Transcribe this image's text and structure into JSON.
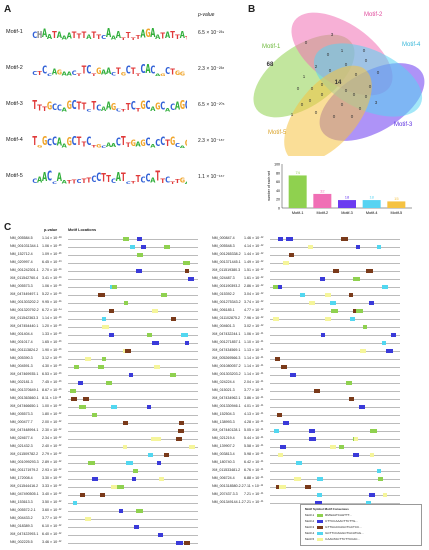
{
  "panels": {
    "a": "A",
    "b": "B",
    "c": "C"
  },
  "motifs": {
    "header_pvalue": "p-value",
    "items": [
      {
        "name": "Motif-1",
        "pvalue": "6.5 × 10⁻²³⁹",
        "seq": "CHAATAAATTTATTCAAATTTTAGAATATTATT"
      },
      {
        "name": "Motif-2",
        "pvalue": "2.3 × 10⁻²³⁸",
        "seq": "CTCCAGAACTTCTGAACTGCTTCACAGCTGG"
      },
      {
        "name": "Motif-3",
        "pvalue": "6.5 × 10⁻²⁰⁶",
        "seq": "TTTGCCAGCTTCTCAAGCTTCTGCAGCACAGC"
      },
      {
        "name": "Motif-4",
        "pvalue": "2.3 × 10⁻¹⁸⁷",
        "seq": "TGGCCAAGCTTCTGCAACTTGAGCACCTGCAGCTG"
      },
      {
        "name": "Motif-5",
        "pvalue": "1.1 × 10⁻¹⁶⁷",
        "seq": "CAACCAATTCTTCCTTCATCTTCCATTCTTGAGCTCA"
      }
    ]
  },
  "venn": {
    "labels": [
      "Motif-1",
      "Motif-2",
      "Motif-3",
      "Motif-4",
      "Motif-5"
    ],
    "colors": [
      "#8fd14f",
      "#f06fb5",
      "#6b3bf0",
      "#57d3f2",
      "#f5c242"
    ],
    "numbers": [
      "68",
      "3",
      "0",
      "14",
      "0",
      "1",
      "2",
      "0",
      "0",
      "0",
      "0",
      "0",
      "0",
      "0",
      "0",
      "0",
      "0",
      "0",
      "3",
      "1",
      "0",
      "0",
      "0",
      "0",
      "0",
      "0",
      "0",
      "0",
      "0",
      "1",
      "0"
    ]
  },
  "chart_data": {
    "type": "bar",
    "categories": [
      "Motif-1",
      "Motif-2",
      "Motif-3",
      "Motif-4",
      "Motif-5"
    ],
    "values": [
      74,
      32,
      18,
      18,
      15
    ],
    "colors": [
      "#8fd14f",
      "#f06fb5",
      "#6b3bf0",
      "#57d3f2",
      "#f5c242"
    ],
    "ylabel": "number of each set",
    "ylim": [
      0,
      100
    ],
    "yticks": [
      "100",
      "80",
      "60",
      "40",
      "20",
      "0"
    ]
  },
  "table": {
    "col_pvalue": "p-value",
    "col_locations": "Motif Locations",
    "left": [
      {
        "id": "NM_005584.5",
        "p": "1.14 × 10⁻²⁸"
      },
      {
        "id": "NM_001031344.1",
        "p": "1.06 × 10⁻²³"
      },
      {
        "id": "NM_152712.4",
        "p": "1.09 × 10⁻²³"
      },
      {
        "id": "NM_020997.4",
        "p": "6.45 × 10⁻¹⁹"
      },
      {
        "id": "NM_001242301.1",
        "p": "2.70 × 10⁻¹⁶"
      },
      {
        "id": "XM_011542760.4",
        "p": "3.41 × 10⁻¹⁶"
      },
      {
        "id": "NM_005573.3",
        "p": "1.06 × 10⁻¹⁵"
      },
      {
        "id": "XM_047449497.1",
        "p": "5.22 × 10⁻¹⁵"
      },
      {
        "id": "NM_001303202.2",
        "p": "9.95 × 10⁻¹⁵"
      },
      {
        "id": "NM_001320792.2",
        "p": "6.72 × 10⁻¹⁴"
      },
      {
        "id": "XM_011542363.3",
        "p": "1.14 × 10⁻¹³"
      },
      {
        "id": "XM_047454440.1",
        "p": "1.20 × 10⁻¹³"
      },
      {
        "id": "NM_001404.4",
        "p": "1.33 × 10⁻¹³"
      },
      {
        "id": "NM_001017.4",
        "p": "1.65 × 10⁻¹³"
      },
      {
        "id": "NM_001113824.2",
        "p": "1.90 × 10⁻¹³"
      },
      {
        "id": "NM_005390.3",
        "p": "3.12 × 10⁻¹³"
      },
      {
        "id": "NM_004591.3",
        "p": "4.30 × 10⁻¹³"
      },
      {
        "id": "XM_047469935.1",
        "p": "6.53 × 10⁻¹³"
      },
      {
        "id": "NM_002181.3",
        "p": "7.45 × 10⁻¹³"
      },
      {
        "id": "NM_001370649.1",
        "p": "8.67 × 10⁻¹³"
      },
      {
        "id": "NM_001363660.1",
        "p": "8.11 × 10⁻¹³"
      },
      {
        "id": "XM_047466650.1",
        "p": "1.00 × 10⁻¹²"
      },
      {
        "id": "NM_005573.3",
        "p": "1.80 × 10⁻¹²"
      },
      {
        "id": "NM_000477.7",
        "p": "2.00 × 10⁻¹²"
      },
      {
        "id": "XM_047448994.1",
        "p": "2.30 × 10⁻¹²"
      },
      {
        "id": "NM_024677.4",
        "p": "2.34 × 10⁻¹²"
      },
      {
        "id": "NM_021432.3",
        "p": "2.40 × 10⁻¹²"
      },
      {
        "id": "XM_011509782.2",
        "p": "2.79 × 10⁻¹²"
      },
      {
        "id": "NM_001099293.3",
        "p": "2.89 × 10⁻¹²"
      },
      {
        "id": "NM_001171979.2",
        "p": "2.93 × 10⁻¹²"
      },
      {
        "id": "NM_172008.4",
        "p": "3.30 × 10⁻¹²"
      },
      {
        "id": "XM_011544416.2",
        "p": "3.33 × 10⁻¹²"
      },
      {
        "id": "NM_047490505.1",
        "p": "3.40 × 10⁻¹²"
      },
      {
        "id": "NM_153613.3",
        "p": "3.50 × 10⁻¹²"
      },
      {
        "id": "NM_005572.2.1",
        "p": "3.60 × 10⁻¹²"
      },
      {
        "id": "NM_004433.2",
        "p": "3.77 × 10⁻¹²"
      },
      {
        "id": "NM_018389.3",
        "p": "6.10 × 10⁻¹²"
      },
      {
        "id": "XM_047422993.1",
        "p": "6.40 × 10⁻¹²"
      },
      {
        "id": "NM_002225.5",
        "p": "3.46 × 10⁻¹²"
      }
    ],
    "right": [
      {
        "id": "NM_000847.4",
        "p": "1.46 × 10⁻¹²"
      },
      {
        "id": "NM_005548.3",
        "p": "4.14 × 10⁻¹²"
      },
      {
        "id": "NM_001265338.2",
        "p": "1.44 × 10⁻¹²"
      },
      {
        "id": "NM_001371445.1",
        "p": "1.49 × 10⁻¹²"
      },
      {
        "id": "XM_011519380.3",
        "p": "1.51 × 10⁻¹²"
      },
      {
        "id": "NM_024487.3",
        "p": "1.61 × 10⁻¹²"
      },
      {
        "id": "NM_001190393.2",
        "p": "2.86 × 10⁻¹²"
      },
      {
        "id": "NM_015392.2",
        "p": "3.04 × 10⁻¹²"
      },
      {
        "id": "NM_001275343.2",
        "p": "3.74 × 10⁻¹²"
      },
      {
        "id": "NM_006185.1",
        "p": "4.77 × 10⁻¹²"
      },
      {
        "id": "NM_011102875.2",
        "p": "7.96 × 10⁻¹²"
      },
      {
        "id": "NM_004601.3",
        "p": "3.02 × 10⁻¹²"
      },
      {
        "id": "XM_047432244.1",
        "p": "1.06 × 10⁻¹¹"
      },
      {
        "id": "NM_001271857.1",
        "p": "1.10 × 10⁻¹¹"
      },
      {
        "id": "XM_047434569.1",
        "p": "1.13 × 10⁻¹¹"
      },
      {
        "id": "XM_005269566.3",
        "p": "1.14 × 10⁻¹¹"
      },
      {
        "id": "NM_001080057.2",
        "p": "1.14 × 10⁻¹¹"
      },
      {
        "id": "NM_001303203.2",
        "p": "1.14 × 10⁻¹¹"
      },
      {
        "id": "NM_024224.4",
        "p": "2.04 × 10⁻¹¹"
      },
      {
        "id": "NM_015021.3",
        "p": "3.77 × 10⁻¹¹"
      },
      {
        "id": "XM_047434962.1",
        "p": "3.86 × 10⁻¹¹"
      },
      {
        "id": "NM_001330946.1",
        "p": "4.01 × 10⁻¹¹"
      },
      {
        "id": "NM_152504.3",
        "p": "4.13 × 10⁻¹¹"
      },
      {
        "id": "NM_138993.3",
        "p": "4.28 × 10⁻¹¹"
      },
      {
        "id": "XM_047440128.1",
        "p": "5.05 × 10⁻¹¹"
      },
      {
        "id": "NM_021219.4",
        "p": "5.44 × 10⁻¹¹"
      },
      {
        "id": "NM_139907.2",
        "p": "5.58 × 10⁻¹¹"
      },
      {
        "id": "NM_003813.4",
        "p": "5.98 × 10⁻¹¹"
      },
      {
        "id": "NM_180740.3",
        "p": "6.42 × 10⁻¹¹"
      },
      {
        "id": "XM_011533481.2",
        "p": "6.76 × 10⁻¹¹"
      },
      {
        "id": "NM_006724.4",
        "p": "6.88 × 10⁻¹¹"
      },
      {
        "id": "NM_001318580.2.2",
        "p": "7.11 × 10⁻¹¹"
      },
      {
        "id": "NM_207437.3.3",
        "p": "7.21 × 10⁻¹¹"
      },
      {
        "id": "NM_001349144.1.2",
        "p": "7.21 × 10⁻¹¹"
      }
    ]
  },
  "legend": {
    "title": "Motif  Symbol  Motif Consensus",
    "items": [
      {
        "name": "Motif-1",
        "color": "#8fd14f",
        "consensus": "RMGAATCAHTTT..."
      },
      {
        "name": "Motif-2",
        "color": "#3a3ad9",
        "consensus": "CTTCCAAACTTCTTG..."
      },
      {
        "name": "Motif-3",
        "color": "#7a3a1a",
        "consensus": "GTTGGCCAGCTGCTCC..."
      },
      {
        "name": "Motif-4",
        "color": "#52d7f0",
        "consensus": "GCTTCCAGGCTGCATGG..."
      },
      {
        "name": "Motif-5",
        "color": "#f5f59a",
        "consensus": "CAAGTACTTCTTCCAC..."
      }
    ]
  }
}
